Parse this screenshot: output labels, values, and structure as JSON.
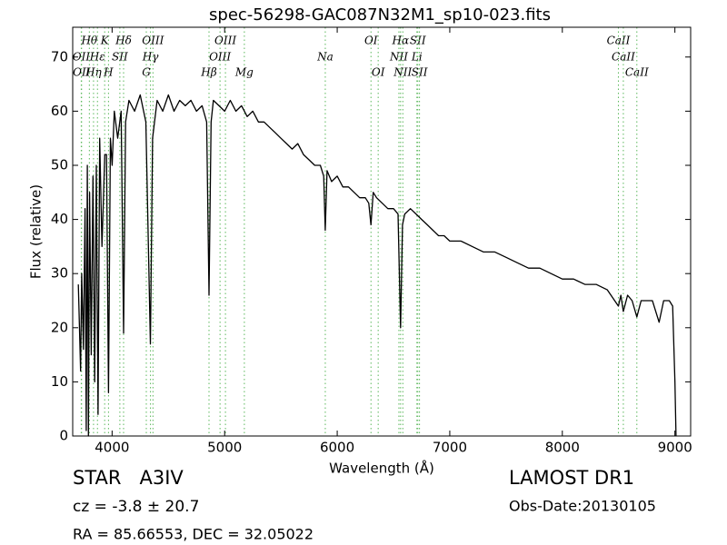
{
  "chart_data": {
    "type": "line",
    "title": "spec-56298-GAC087N32M1_sp10-023.fits",
    "x_label": "Wavelength (Å)",
    "y_label": "Flux (relative)",
    "color": "#000000",
    "xlim": [
      3650,
      9140
    ],
    "ylim": [
      0,
      75.5
    ],
    "xticks": [
      4000,
      5000,
      6000,
      7000,
      8000,
      9000
    ],
    "yticks": [
      0,
      10,
      20,
      30,
      40,
      50,
      60,
      70
    ],
    "x": [
      3700,
      3720,
      3730,
      3745,
      3760,
      3770,
      3780,
      3790,
      3800,
      3815,
      3830,
      3845,
      3860,
      3875,
      3890,
      3910,
      3935,
      3950,
      3968,
      3985,
      4000,
      4020,
      4050,
      4080,
      4102,
      4120,
      4150,
      4200,
      4250,
      4300,
      4340,
      4360,
      4400,
      4450,
      4500,
      4550,
      4600,
      4650,
      4700,
      4750,
      4800,
      4840,
      4861,
      4880,
      4900,
      4950,
      5000,
      5050,
      5100,
      5150,
      5200,
      5250,
      5300,
      5350,
      5400,
      5450,
      5500,
      5550,
      5600,
      5650,
      5700,
      5750,
      5800,
      5850,
      5880,
      5894,
      5910,
      5950,
      6000,
      6050,
      6100,
      6150,
      6200,
      6250,
      6280,
      6300,
      6320,
      6350,
      6400,
      6450,
      6500,
      6540,
      6563,
      6580,
      6600,
      6650,
      6700,
      6750,
      6800,
      6850,
      6900,
      6950,
      7000,
      7100,
      7200,
      7300,
      7400,
      7500,
      7600,
      7700,
      7800,
      7900,
      8000,
      8100,
      8200,
      8300,
      8400,
      8498,
      8520,
      8542,
      8580,
      8620,
      8662,
      8700,
      8800,
      8860,
      8900,
      8950,
      8980,
      9000,
      9010
    ],
    "values": [
      28,
      12,
      30,
      16,
      42,
      1,
      50,
      0,
      45,
      15,
      48,
      10,
      50,
      4,
      55,
      35,
      52,
      52,
      8,
      55,
      50,
      60,
      55,
      60,
      19,
      58,
      62,
      60,
      63,
      58,
      17,
      55,
      62,
      60,
      63,
      60,
      62,
      61,
      62,
      60,
      61,
      58,
      26,
      58,
      62,
      61,
      60,
      62,
      60,
      61,
      59,
      60,
      58,
      58,
      57,
      56,
      55,
      54,
      53,
      54,
      52,
      51,
      50,
      50,
      48,
      38,
      49,
      47,
      48,
      46,
      46,
      45,
      44,
      44,
      43,
      39,
      45,
      44,
      43,
      42,
      42,
      41,
      20,
      39,
      41,
      42,
      41,
      40,
      39,
      38,
      37,
      37,
      36,
      36,
      35,
      34,
      34,
      33,
      32,
      31,
      31,
      30,
      29,
      29,
      28,
      28,
      27,
      24,
      26,
      23,
      26,
      25,
      22,
      25,
      25,
      21,
      25,
      25,
      24,
      10,
      0
    ],
    "line_color": "#5cb85c",
    "spectral_lines": [
      {
        "label": "OII",
        "wavelength": 3726
      },
      {
        "label": "OII",
        "wavelength": 3729
      },
      {
        "label": "Hθ",
        "wavelength": 3798
      },
      {
        "label": "Hη",
        "wavelength": 3835
      },
      {
        "label": "Hε",
        "wavelength": 3870
      },
      {
        "label": "K",
        "wavelength": 3934
      },
      {
        "label": "H",
        "wavelength": 3968
      },
      {
        "label": "SII",
        "wavelength": 4069
      },
      {
        "label": "Hδ",
        "wavelength": 4102
      },
      {
        "label": "G",
        "wavelength": 4304
      },
      {
        "label": "Hγ",
        "wavelength": 4341
      },
      {
        "label": "OIII",
        "wavelength": 4363
      },
      {
        "label": "Hβ",
        "wavelength": 4861
      },
      {
        "label": "OIII",
        "wavelength": 4959
      },
      {
        "label": "OIII",
        "wavelength": 5007
      },
      {
        "label": "Mg",
        "wavelength": 5175
      },
      {
        "label": "Na",
        "wavelength": 5894
      },
      {
        "label": "OI",
        "wavelength": 6300
      },
      {
        "label": "OI",
        "wavelength": 6364
      },
      {
        "label": "NII",
        "wavelength": 6548
      },
      {
        "label": "Hα",
        "wavelength": 6563
      },
      {
        "label": "NII",
        "wavelength": 6583
      },
      {
        "label": "Li",
        "wavelength": 6708
      },
      {
        "label": "SII",
        "wavelength": 6716
      },
      {
        "label": "SII",
        "wavelength": 6731
      },
      {
        "label": "CaII",
        "wavelength": 8498
      },
      {
        "label": "CaII",
        "wavelength": 8542
      },
      {
        "label": "CaII",
        "wavelength": 8662
      }
    ],
    "object_class": "STAR   A3IV",
    "redshift": "cz = -3.8 ± 20.7",
    "coordinates": "RA = 85.66553, DEC = 32.05022",
    "survey": "LAMOST DR1",
    "obs_date": "Obs-Date:20130105"
  }
}
